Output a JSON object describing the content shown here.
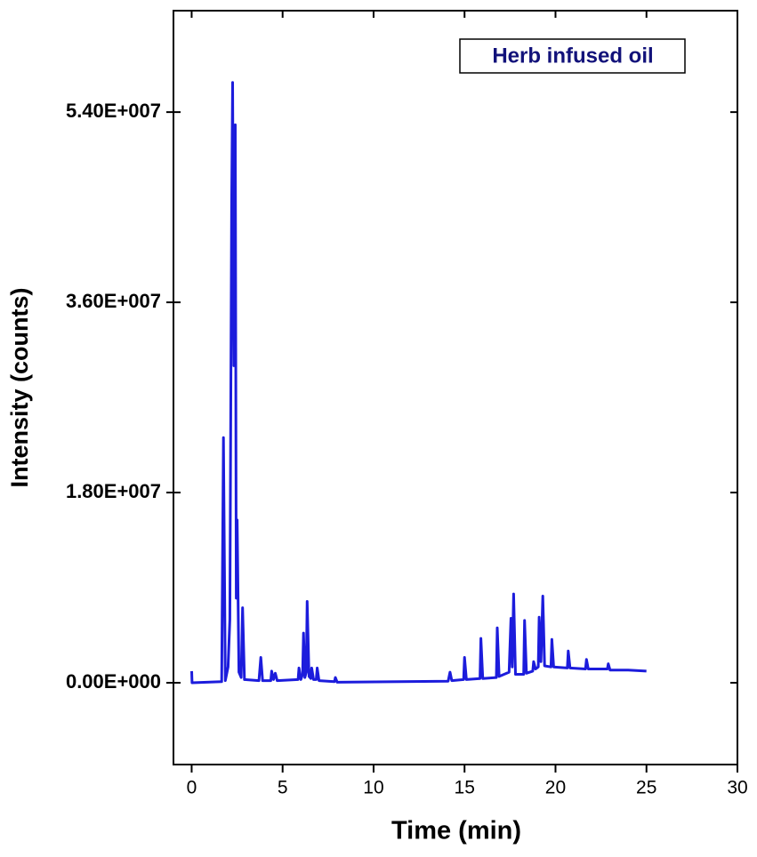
{
  "chart_data": {
    "type": "line",
    "x_label": "Time (min)",
    "y_label": "Intensity (counts)",
    "x": [
      0,
      0.02,
      1.65,
      1.75,
      1.85,
      2.0,
      2.1,
      2.2,
      2.25,
      2.32,
      2.4,
      2.45,
      2.5,
      2.6,
      2.72,
      2.8,
      2.9,
      3.7,
      3.8,
      3.9,
      4.35,
      4.4,
      4.5,
      4.6,
      4.7,
      5.85,
      5.9,
      6.0,
      6.1,
      6.15,
      6.22,
      6.3,
      6.35,
      6.45,
      6.55,
      6.6,
      6.7,
      6.85,
      6.9,
      7.0,
      7.85,
      7.9,
      8.0,
      14.1,
      14.2,
      14.3,
      14.95,
      15.0,
      15.1,
      15.85,
      15.9,
      16.0,
      16.75,
      16.8,
      16.9,
      17.45,
      17.55,
      17.62,
      17.7,
      17.8,
      18.25,
      18.3,
      18.4,
      18.75,
      18.8,
      18.9,
      19.05,
      19.1,
      19.2,
      19.3,
      19.4,
      19.75,
      19.8,
      19.9,
      20.65,
      20.7,
      20.8,
      21.65,
      21.7,
      21.8,
      22.85,
      22.9,
      23.0,
      24.0,
      25.0
    ],
    "series": [
      {
        "name": "Herb infused oil",
        "color": "#1c1cdc",
        "values": [
          1100000,
          0,
          100000,
          23200000,
          200000,
          1500000,
          6000000,
          45000000,
          56800000,
          30000000,
          52800000,
          8000000,
          15400000,
          1000000,
          500000,
          7100000,
          300000,
          200000,
          2400000,
          200000,
          200000,
          1100000,
          300000,
          900000,
          200000,
          300000,
          1400000,
          300000,
          800000,
          4700000,
          500000,
          1000000,
          7700000,
          600000,
          400000,
          1400000,
          300000,
          300000,
          1400000,
          200000,
          100000,
          500000,
          50000,
          150000,
          1000000,
          200000,
          300000,
          2400000,
          300000,
          400000,
          4200000,
          400000,
          500000,
          5200000,
          600000,
          1000000,
          6100000,
          1500000,
          8400000,
          800000,
          800000,
          5900000,
          900000,
          1100000,
          2000000,
          1300000,
          1500000,
          6200000,
          2000000,
          8200000,
          1600000,
          1500000,
          4100000,
          1500000,
          1400000,
          3000000,
          1400000,
          1300000,
          2200000,
          1300000,
          1300000,
          1800000,
          1200000,
          1200000,
          1100000
        ]
      }
    ],
    "xlim": [
      -1,
      30
    ],
    "xticks": [
      0,
      5,
      10,
      15,
      20,
      25,
      30
    ],
    "ylim": [
      -7740000,
      63600000
    ],
    "yticks": [
      {
        "value": 0,
        "label": "0.00E+000"
      },
      {
        "value": 18000000,
        "label": "1.80E+007"
      },
      {
        "value": 36000000,
        "label": "3.60E+007"
      },
      {
        "value": 54000000,
        "label": "5.40E+007"
      }
    ],
    "legend": "upper right"
  }
}
